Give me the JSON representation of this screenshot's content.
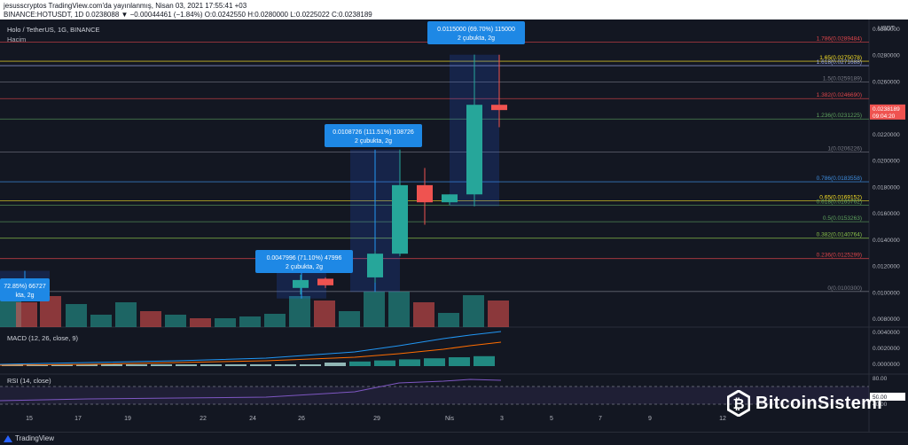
{
  "header": {
    "line1": "jesusscryptos TradingView.com'da yayınlanmış, Nisan 03, 2021 17:55:41 +03",
    "line2": "BINANCE:HOTUSDT, 1D 0.0238088 ▼ −0.00044461 (−1.84%) O:0.0242550 H:0.0280000 L:0.0225022 C:0.0238189"
  },
  "legend": {
    "symbol": "Holo / TetherUS, 1G, BINANCE",
    "volume": "Hacim",
    "macd": "MACD (12, 26, close, 9)",
    "rsi": "RSI (14, close)"
  },
  "price_axis": {
    "currency": "USDT",
    "ticks": [
      "0.0300000",
      "0.0280000",
      "0.0260000",
      "0.0240000",
      "0.0220000",
      "0.0200000",
      "0.0180000",
      "0.0160000",
      "0.0140000",
      "0.0120000",
      "0.0100000",
      "0.0080000"
    ],
    "last_price": "0.0238189",
    "countdown": "09:04:20",
    "macd_ticks": [
      "0.0040000",
      "0.0020000",
      "0.0000000"
    ],
    "rsi_ticks": [
      "80.00",
      "50.00",
      "40.00"
    ]
  },
  "time_axis": {
    "labels": [
      "15",
      "17",
      "19",
      "22",
      "24",
      "26",
      "29",
      "Nis",
      "3",
      "5",
      "7",
      "9",
      "12"
    ]
  },
  "fib_levels": [
    {
      "label": "1.786(0.0289484)",
      "color": "#e0464b"
    },
    {
      "label": "1.65(0.0275078)",
      "color": "#f7e026"
    },
    {
      "label": "1.618(0.0271688)",
      "color": "#9ba7e6"
    },
    {
      "label": "1.5(0.0259189)",
      "color": "#787b86"
    },
    {
      "label": "1.382(0.0246690)",
      "color": "#e0464b"
    },
    {
      "label": "1.236(0.0231225)",
      "color": "#5fa35e"
    },
    {
      "label": "1(0.0206226)",
      "color": "#787b86"
    },
    {
      "label": "0.786(0.0183558)",
      "color": "#3f8fe0"
    },
    {
      "label": "0.65(0.0169152)",
      "color": "#f7e026"
    },
    {
      "label": "0.618(0.0165762)",
      "color": "#5fa35e"
    },
    {
      "label": "0.5(0.0153263)",
      "color": "#5fa35e"
    },
    {
      "label": "0.382(0.0140764)",
      "color": "#8bc34a"
    },
    {
      "label": "0.236(0.0125299)",
      "color": "#e0464b"
    },
    {
      "label": "0(0.0100300)",
      "color": "#787b86"
    }
  ],
  "measures": [
    {
      "value": "0.0115000 (69.70%) 115000",
      "sub": "2 çubukta, 2g"
    },
    {
      "value": "0.0108726 (111.51%) 108726",
      "sub": "2 çubukta, 2g"
    },
    {
      "value": "0.0047996 (71.10%) 47996",
      "sub": "2 çubukta, 2g"
    },
    {
      "value": "72.85%) 66727",
      "sub": "kta, 2g"
    }
  ],
  "chart_data": {
    "type": "candlestick",
    "series": [
      {
        "name": "HOTUSDT",
        "ohlc": [
          {
            "o": 0.0103,
            "h": 0.0113,
            "l": 0.0098,
            "c": 0.0109
          },
          {
            "o": 0.011,
            "h": 0.0111,
            "l": 0.0103,
            "c": 0.0105
          },
          {
            "o": 0.0111,
            "h": 0.0131,
            "l": 0.0107,
            "c": 0.0129
          },
          {
            "o": 0.0129,
            "h": 0.0208,
            "l": 0.0127,
            "c": 0.0181
          },
          {
            "o": 0.0181,
            "h": 0.0194,
            "l": 0.0151,
            "c": 0.0168
          },
          {
            "o": 0.0168,
            "h": 0.0174,
            "l": 0.0166,
            "c": 0.0174
          },
          {
            "o": 0.0174,
            "h": 0.028,
            "l": 0.0165,
            "c": 0.0242
          },
          {
            "o": 0.0242,
            "h": 0.028,
            "l": 0.0225,
            "c": 0.0238
          }
        ]
      }
    ]
  },
  "brand": {
    "tradingview": "TradingView",
    "watermark": "BitcoinSistemi"
  }
}
